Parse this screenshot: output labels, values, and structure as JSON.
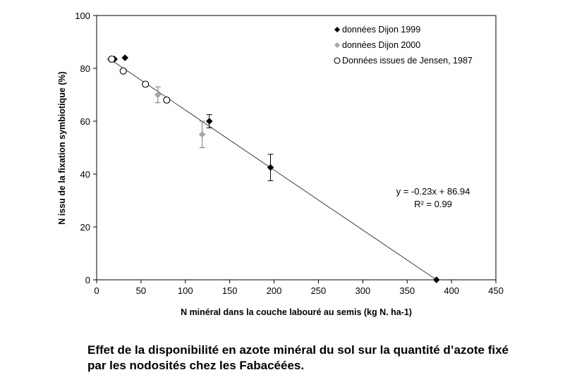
{
  "caption": {
    "line1": "Effet de la disponibilité en azote minéral du sol sur la quantité d’azote fixé",
    "line2": "par les nodosités chez les Fabacéées."
  },
  "chart_data": {
    "type": "scatter",
    "xlabel": "N minéral dans la couche labouré au semis (kg N. ha-1)",
    "ylabel": "N issu de la fixation symbiotique (%)",
    "xlim": [
      0,
      450
    ],
    "ylim": [
      0,
      100
    ],
    "x_ticks": [
      0,
      50,
      100,
      150,
      200,
      250,
      300,
      350,
      400,
      450
    ],
    "y_ticks": [
      0,
      20,
      40,
      60,
      80,
      100
    ],
    "legend_position": "top-right",
    "series": [
      {
        "name": "données Dijon 1999",
        "marker": "diamond-filled",
        "color": "#000000",
        "points": [
          {
            "x": 20,
            "y": 83.5
          },
          {
            "x": 32,
            "y": 84
          },
          {
            "x": 127,
            "y": 60,
            "err": 2.5
          },
          {
            "x": 196,
            "y": 42.5,
            "err": 5
          },
          {
            "x": 383,
            "y": 0
          }
        ]
      },
      {
        "name": "données Dijon 2000",
        "marker": "diamond-filled",
        "color": "#a6a6a6",
        "points": [
          {
            "x": 15,
            "y": 83.5
          },
          {
            "x": 69,
            "y": 70,
            "err": 3
          },
          {
            "x": 119,
            "y": 55,
            "err": 5
          }
        ]
      },
      {
        "name": "Données issues de Jensen, 1987",
        "marker": "circle-open",
        "color": "#000000",
        "points": [
          {
            "x": 17,
            "y": 83.5
          },
          {
            "x": 30,
            "y": 79
          },
          {
            "x": 55,
            "y": 74
          },
          {
            "x": 79,
            "y": 68
          }
        ]
      }
    ],
    "trendline": {
      "slope": -0.23,
      "intercept": 86.94,
      "x_start": 13,
      "x_end": 383,
      "color": "#404040"
    },
    "annotation": {
      "equation": "y = -0.23x + 86.94",
      "r2": "R² = 0.99"
    }
  }
}
